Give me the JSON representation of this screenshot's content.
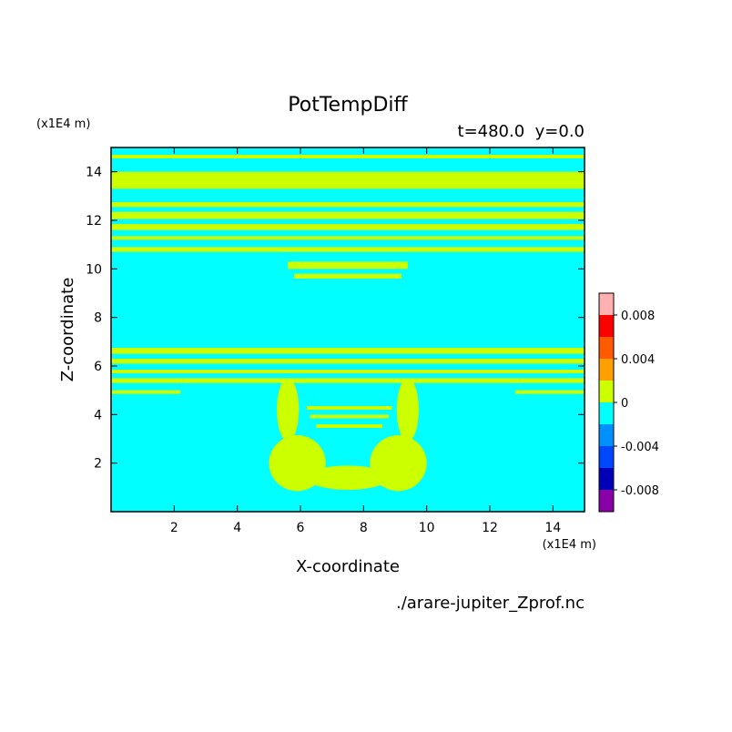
{
  "chart_data": {
    "type": "heatmap",
    "title": "PotTempDiff",
    "subtitle": "t=480.0  y=0.0",
    "xlabel": "X-coordinate",
    "ylabel": "Z-coordinate",
    "x_unit": "(x1E4 m)",
    "y_unit": "(x1E4 m)",
    "xlim": [
      0,
      15
    ],
    "ylim": [
      0,
      15
    ],
    "x_ticks": [
      2,
      4,
      6,
      8,
      10,
      12,
      14
    ],
    "y_ticks": [
      2,
      4,
      6,
      8,
      10,
      12,
      14
    ],
    "footer": "./arare-jupiter_Zprof.nc",
    "colorbar": {
      "levels": [
        -0.01,
        -0.008,
        -0.006,
        -0.004,
        -0.002,
        0,
        0.002,
        0.004,
        0.006,
        0.008,
        0.01
      ],
      "colors": [
        "#8a00a8",
        "#0000b8",
        "#0048ff",
        "#0090ff",
        "#00ffff",
        "#ccff00",
        "#ffa000",
        "#ff5a00",
        "#ff0000",
        "#ffb0b0"
      ],
      "tick_values": [
        -0.008,
        -0.004,
        0,
        0.004,
        0.008
      ],
      "tick_labels": [
        "-0.008",
        "-0.004",
        "0",
        "0.004",
        "0.008"
      ]
    },
    "background_value": -0.001,
    "positive_bands": [
      {
        "z_min": 14.55,
        "z_max": 14.7,
        "x_min": 0,
        "x_max": 15
      },
      {
        "z_min": 13.3,
        "z_max": 14.0,
        "x_min": 0,
        "x_max": 15
      },
      {
        "z_min": 12.55,
        "z_max": 12.75,
        "x_min": 0,
        "x_max": 15
      },
      {
        "z_min": 12.05,
        "z_max": 12.35,
        "x_min": 0,
        "x_max": 15
      },
      {
        "z_min": 11.6,
        "z_max": 11.85,
        "x_min": 0,
        "x_max": 15
      },
      {
        "z_min": 11.2,
        "z_max": 11.35,
        "x_min": 0,
        "x_max": 15
      },
      {
        "z_min": 10.7,
        "z_max": 10.9,
        "x_min": 0,
        "x_max": 15
      },
      {
        "z_min": 10.0,
        "z_max": 10.3,
        "x_min": 5.6,
        "x_max": 9.4
      },
      {
        "z_min": 9.6,
        "z_max": 9.8,
        "x_min": 5.8,
        "x_max": 9.2
      },
      {
        "z_min": 6.5,
        "z_max": 6.75,
        "x_min": 0,
        "x_max": 15
      },
      {
        "z_min": 6.1,
        "z_max": 6.3,
        "x_min": 0,
        "x_max": 15
      },
      {
        "z_min": 5.7,
        "z_max": 5.85,
        "x_min": 0,
        "x_max": 15
      },
      {
        "z_min": 5.3,
        "z_max": 5.5,
        "x_min": 0,
        "x_max": 15
      },
      {
        "z_min": 4.85,
        "z_max": 5.0,
        "x_min": 0,
        "x_max": 2.2
      },
      {
        "z_min": 4.85,
        "z_max": 5.0,
        "x_min": 12.8,
        "x_max": 15
      },
      {
        "z_min": 4.2,
        "z_max": 4.35,
        "x_min": 6.2,
        "x_max": 8.9
      },
      {
        "z_min": 3.85,
        "z_max": 4.0,
        "x_min": 6.3,
        "x_max": 8.8
      },
      {
        "z_min": 3.45,
        "z_max": 3.6,
        "x_min": 6.5,
        "x_max": 8.6
      }
    ],
    "positive_blobs": [
      {
        "x": 5.9,
        "z": 2.0,
        "rx": 0.9,
        "rz": 1.15
      },
      {
        "x": 9.1,
        "z": 2.0,
        "rx": 0.9,
        "rz": 1.15
      },
      {
        "x": 7.5,
        "z": 1.4,
        "rx": 1.3,
        "rz": 0.5
      },
      {
        "x": 5.6,
        "z": 4.2,
        "rx": 0.35,
        "rz": 1.3
      },
      {
        "x": 9.4,
        "z": 4.2,
        "rx": 0.35,
        "rz": 1.3
      }
    ]
  }
}
